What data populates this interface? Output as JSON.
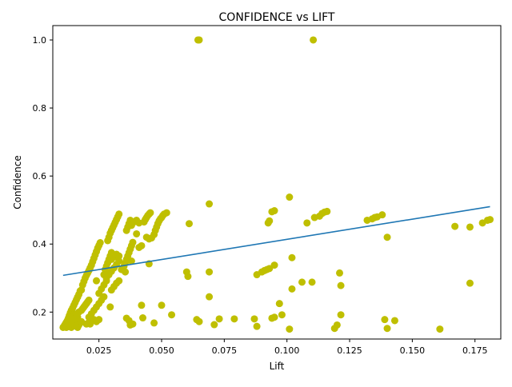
{
  "chart_data": {
    "type": "scatter",
    "title": "CONFIDENCE vs LIFT",
    "xlabel": "Lift",
    "ylabel": "Confidence",
    "xlim": [
      0.0066,
      0.1853
    ],
    "ylim": [
      0.1208,
      1.0423
    ],
    "xticks": [
      0.025,
      0.05,
      0.075,
      0.1,
      0.125,
      0.15,
      0.175
    ],
    "xtick_labels": [
      "0.025",
      "0.050",
      "0.075",
      "0.100",
      "0.125",
      "0.150",
      "0.175"
    ],
    "yticks": [
      0.2,
      0.4,
      0.6,
      0.8,
      1.0
    ],
    "ytick_labels": [
      "0.2",
      "0.4",
      "0.6",
      "0.8",
      "1.0"
    ],
    "grid": false,
    "legend": "none",
    "series": [
      {
        "marker_color": "#bfbf00",
        "points": [
          [
            0.0107,
            0.155
          ],
          [
            0.0112,
            0.16
          ],
          [
            0.0116,
            0.165
          ],
          [
            0.012,
            0.17
          ],
          [
            0.0124,
            0.175
          ],
          [
            0.0128,
            0.182
          ],
          [
            0.0132,
            0.19
          ],
          [
            0.0136,
            0.198
          ],
          [
            0.014,
            0.205
          ],
          [
            0.0145,
            0.212
          ],
          [
            0.015,
            0.22
          ],
          [
            0.0155,
            0.228
          ],
          [
            0.016,
            0.236
          ],
          [
            0.0165,
            0.244
          ],
          [
            0.017,
            0.252
          ],
          [
            0.0175,
            0.262
          ],
          [
            0.012,
            0.155
          ],
          [
            0.0125,
            0.158
          ],
          [
            0.013,
            0.16
          ],
          [
            0.0135,
            0.162
          ],
          [
            0.014,
            0.155
          ],
          [
            0.0145,
            0.165
          ],
          [
            0.015,
            0.17
          ],
          [
            0.0155,
            0.16
          ],
          [
            0.016,
            0.158
          ],
          [
            0.0165,
            0.155
          ],
          [
            0.017,
            0.162
          ],
          [
            0.0175,
            0.168
          ],
          [
            0.018,
            0.172
          ],
          [
            0.014,
            0.175
          ],
          [
            0.0155,
            0.18
          ],
          [
            0.0165,
            0.185
          ],
          [
            0.015,
            0.19
          ],
          [
            0.016,
            0.195
          ],
          [
            0.017,
            0.2
          ],
          [
            0.018,
            0.205
          ],
          [
            0.0185,
            0.21
          ],
          [
            0.019,
            0.215
          ],
          [
            0.0195,
            0.22
          ],
          [
            0.02,
            0.225
          ],
          [
            0.0205,
            0.23
          ],
          [
            0.021,
            0.235
          ],
          [
            0.018,
            0.265
          ],
          [
            0.0185,
            0.28
          ],
          [
            0.019,
            0.29
          ],
          [
            0.0195,
            0.3
          ],
          [
            0.02,
            0.308
          ],
          [
            0.0205,
            0.315
          ],
          [
            0.021,
            0.322
          ],
          [
            0.0215,
            0.33
          ],
          [
            0.022,
            0.338
          ],
          [
            0.0225,
            0.348
          ],
          [
            0.023,
            0.358
          ],
          [
            0.0235,
            0.368
          ],
          [
            0.024,
            0.378
          ],
          [
            0.0245,
            0.388
          ],
          [
            0.025,
            0.396
          ],
          [
            0.0255,
            0.404
          ],
          [
            0.02,
            0.165
          ],
          [
            0.021,
            0.17
          ],
          [
            0.0215,
            0.165
          ],
          [
            0.022,
            0.175
          ],
          [
            0.023,
            0.178
          ],
          [
            0.024,
            0.172
          ],
          [
            0.025,
            0.178
          ],
          [
            0.021,
            0.185
          ],
          [
            0.022,
            0.195
          ],
          [
            0.023,
            0.205
          ],
          [
            0.024,
            0.215
          ],
          [
            0.025,
            0.225
          ],
          [
            0.026,
            0.235
          ],
          [
            0.027,
            0.245
          ],
          [
            0.025,
            0.255
          ],
          [
            0.026,
            0.268
          ],
          [
            0.027,
            0.28
          ],
          [
            0.028,
            0.292
          ],
          [
            0.024,
            0.292
          ],
          [
            0.027,
            0.31
          ],
          [
            0.0275,
            0.325
          ],
          [
            0.028,
            0.335
          ],
          [
            0.0285,
            0.345
          ],
          [
            0.029,
            0.355
          ],
          [
            0.0295,
            0.365
          ],
          [
            0.03,
            0.375
          ],
          [
            0.0285,
            0.41
          ],
          [
            0.029,
            0.42
          ],
          [
            0.0295,
            0.432
          ],
          [
            0.03,
            0.44
          ],
          [
            0.0305,
            0.448
          ],
          [
            0.031,
            0.456
          ],
          [
            0.0315,
            0.464
          ],
          [
            0.032,
            0.472
          ],
          [
            0.0325,
            0.48
          ],
          [
            0.033,
            0.488
          ],
          [
            0.028,
            0.3
          ],
          [
            0.029,
            0.31
          ],
          [
            0.03,
            0.32
          ],
          [
            0.031,
            0.33
          ],
          [
            0.032,
            0.34
          ],
          [
            0.033,
            0.35
          ],
          [
            0.03,
            0.265
          ],
          [
            0.031,
            0.275
          ],
          [
            0.032,
            0.285
          ],
          [
            0.033,
            0.292
          ],
          [
            0.03,
            0.355
          ],
          [
            0.031,
            0.362
          ],
          [
            0.032,
            0.37
          ],
          [
            0.033,
            0.365
          ],
          [
            0.0295,
            0.215
          ],
          [
            0.034,
            0.325
          ],
          [
            0.035,
            0.335
          ],
          [
            0.0355,
            0.345
          ],
          [
            0.036,
            0.355
          ],
          [
            0.0365,
            0.365
          ],
          [
            0.037,
            0.375
          ],
          [
            0.0375,
            0.385
          ],
          [
            0.038,
            0.395
          ],
          [
            0.0385,
            0.405
          ],
          [
            0.0355,
            0.318
          ],
          [
            0.036,
            0.44
          ],
          [
            0.0365,
            0.45
          ],
          [
            0.037,
            0.46
          ],
          [
            0.0375,
            0.47
          ],
          [
            0.038,
            0.455
          ],
          [
            0.039,
            0.465
          ],
          [
            0.04,
            0.47
          ],
          [
            0.041,
            0.462
          ],
          [
            0.038,
            0.35
          ],
          [
            0.04,
            0.43
          ],
          [
            0.041,
            0.39
          ],
          [
            0.042,
            0.395
          ],
          [
            0.036,
            0.182
          ],
          [
            0.037,
            0.175
          ],
          [
            0.0375,
            0.162
          ],
          [
            0.0385,
            0.165
          ],
          [
            0.042,
            0.22
          ],
          [
            0.0425,
            0.183
          ],
          [
            0.043,
            0.465
          ],
          [
            0.0435,
            0.472
          ],
          [
            0.044,
            0.478
          ],
          [
            0.0445,
            0.484
          ],
          [
            0.045,
            0.488
          ],
          [
            0.0455,
            0.492
          ],
          [
            0.044,
            0.42
          ],
          [
            0.045,
            0.415
          ],
          [
            0.046,
            0.418
          ],
          [
            0.047,
            0.428
          ],
          [
            0.0475,
            0.44
          ],
          [
            0.048,
            0.45
          ],
          [
            0.0485,
            0.46
          ],
          [
            0.049,
            0.468
          ],
          [
            0.0495,
            0.474
          ],
          [
            0.05,
            0.478
          ],
          [
            0.0505,
            0.484
          ],
          [
            0.051,
            0.488
          ],
          [
            0.052,
            0.492
          ],
          [
            0.045,
            0.342
          ],
          [
            0.047,
            0.168
          ],
          [
            0.05,
            0.22
          ],
          [
            0.054,
            0.192
          ],
          [
            0.06,
            0.318
          ],
          [
            0.0605,
            0.305
          ],
          [
            0.061,
            0.46
          ],
          [
            0.064,
            0.178
          ],
          [
            0.065,
            0.172
          ],
          [
            0.0645,
            1.0
          ],
          [
            0.065,
            1.0
          ],
          [
            0.069,
            0.518
          ],
          [
            0.069,
            0.318
          ],
          [
            0.069,
            0.245
          ],
          [
            0.071,
            0.163
          ],
          [
            0.073,
            0.18
          ],
          [
            0.079,
            0.18
          ],
          [
            0.087,
            0.18
          ],
          [
            0.088,
            0.158
          ],
          [
            0.088,
            0.31
          ],
          [
            0.09,
            0.318
          ],
          [
            0.091,
            0.322
          ],
          [
            0.092,
            0.325
          ],
          [
            0.093,
            0.328
          ],
          [
            0.095,
            0.338
          ],
          [
            0.0925,
            0.462
          ],
          [
            0.093,
            0.468
          ],
          [
            0.094,
            0.495
          ],
          [
            0.095,
            0.498
          ],
          [
            0.094,
            0.182
          ],
          [
            0.095,
            0.185
          ],
          [
            0.097,
            0.225
          ],
          [
            0.098,
            0.192
          ],
          [
            0.101,
            0.538
          ],
          [
            0.101,
            0.15
          ],
          [
            0.102,
            0.36
          ],
          [
            0.102,
            0.268
          ],
          [
            0.106,
            0.288
          ],
          [
            0.108,
            0.462
          ],
          [
            0.1105,
            1.0
          ],
          [
            0.11,
            0.288
          ],
          [
            0.111,
            0.478
          ],
          [
            0.113,
            0.482
          ],
          [
            0.114,
            0.49
          ],
          [
            0.115,
            0.494
          ],
          [
            0.116,
            0.496
          ],
          [
            0.119,
            0.152
          ],
          [
            0.12,
            0.162
          ],
          [
            0.121,
            0.315
          ],
          [
            0.1215,
            0.278
          ],
          [
            0.1215,
            0.192
          ],
          [
            0.132,
            0.47
          ],
          [
            0.134,
            0.474
          ],
          [
            0.135,
            0.478
          ],
          [
            0.136,
            0.48
          ],
          [
            0.138,
            0.486
          ],
          [
            0.139,
            0.178
          ],
          [
            0.14,
            0.42
          ],
          [
            0.14,
            0.152
          ],
          [
            0.143,
            0.175
          ],
          [
            0.161,
            0.15
          ],
          [
            0.167,
            0.452
          ],
          [
            0.173,
            0.45
          ],
          [
            0.173,
            0.285
          ],
          [
            0.178,
            0.462
          ],
          [
            0.18,
            0.47
          ],
          [
            0.181,
            0.472
          ]
        ]
      }
    ],
    "trendline": {
      "color": "#1f77b4",
      "x": [
        0.0107,
        0.181
      ],
      "y": [
        0.308,
        0.51
      ]
    }
  }
}
